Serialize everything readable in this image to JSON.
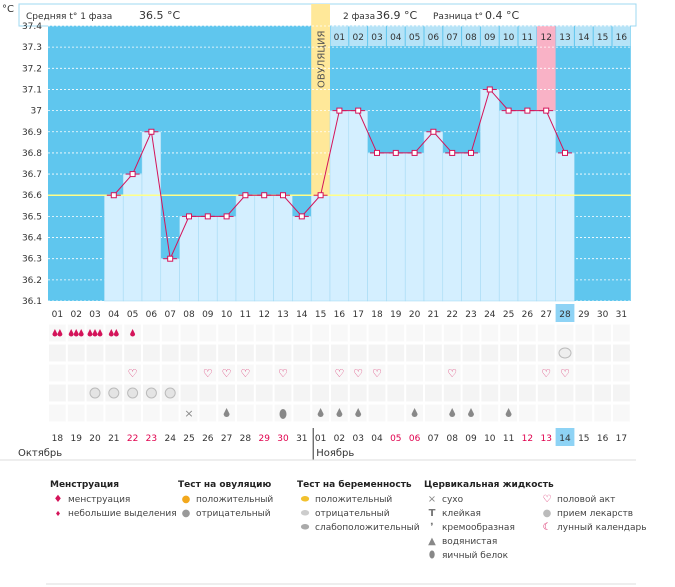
{
  "axis_unit": "°C",
  "header": {
    "phase1_label": "Средняя t° 1 фаза",
    "phase1_value": "36.5 °C",
    "phase2_label": "2 фаза",
    "phase2_value": "36.9 °C",
    "diff_label": "Разница t°",
    "diff_value": "0.4 °C"
  },
  "ovulation_label": "ОВУЛЯЦИЯ",
  "month_left": "Октябрь",
  "month_right": "Ноябрь",
  "colors": {
    "plot_bg": "#5fc6ee",
    "bar_fill": "#d4efff",
    "line": "#d4145a",
    "ovulation": "#ffe899",
    "pink_col": "#f9b2c6",
    "coverline": "#ffff88",
    "grid": "#ffffff",
    "current_day": "#8ed3f5",
    "red_date": "#e0004d"
  },
  "chart_data": {
    "type": "line",
    "ylabel": "°C",
    "ylim": [
      36.1,
      37.4
    ],
    "yticks": [
      "36.1",
      "36.2",
      "36.3",
      "36.4",
      "36.5",
      "36.6",
      "36.7",
      "36.8",
      "36.9",
      "37",
      "37.1",
      "37.2",
      "37.3",
      "37.4"
    ],
    "coverline": 36.6,
    "top_numbers": [
      "",
      "",
      "",
      "",
      "",
      "",
      "",
      "",
      "",
      "",
      "",
      "",
      "",
      "",
      "",
      "01",
      "02",
      "03",
      "04",
      "05",
      "06",
      "07",
      "08",
      "09",
      "10",
      "11",
      "12",
      "13",
      "14",
      "15",
      "16"
    ],
    "cycle_days": [
      "01",
      "02",
      "03",
      "04",
      "05",
      "06",
      "07",
      "08",
      "09",
      "10",
      "11",
      "12",
      "13",
      "14",
      "15",
      "16",
      "17",
      "18",
      "19",
      "20",
      "21",
      "22",
      "23",
      "24",
      "25",
      "26",
      "27",
      "28",
      "29",
      "30",
      "31"
    ],
    "dates": [
      "18",
      "19",
      "20",
      "21",
      "22",
      "23",
      "24",
      "25",
      "26",
      "27",
      "28",
      "29",
      "30",
      "31",
      "01",
      "02",
      "03",
      "04",
      "05",
      "06",
      "07",
      "08",
      "09",
      "10",
      "11",
      "12",
      "13",
      "14",
      "15",
      "16",
      "17"
    ],
    "red_dates": [
      4,
      5,
      11,
      12,
      18,
      19,
      25,
      26
    ],
    "current_index": 27,
    "ovulation_index": 14,
    "pink_index": 26,
    "series": [
      {
        "values": [
          null,
          null,
          null,
          36.6,
          36.7,
          36.9,
          36.3,
          36.5,
          36.5,
          36.5,
          36.6,
          36.6,
          36.6,
          36.5,
          36.6,
          37.0,
          37.0,
          36.8,
          36.8,
          36.8,
          36.9,
          36.8,
          36.8,
          37.1,
          37.0,
          37.0,
          37.0,
          36.8,
          null,
          null,
          null
        ]
      }
    ]
  },
  "markers": {
    "menstruation": [
      2,
      3,
      3,
      2,
      1,
      null,
      null,
      null,
      null,
      null,
      null,
      null,
      null,
      null,
      null,
      null,
      null,
      null,
      null,
      null,
      null,
      null,
      null,
      null,
      null,
      null,
      null,
      null,
      null,
      null,
      null
    ],
    "pregnancy_negative": [
      false,
      false,
      false,
      false,
      false,
      false,
      false,
      false,
      false,
      false,
      false,
      false,
      false,
      false,
      false,
      false,
      false,
      false,
      false,
      false,
      false,
      false,
      false,
      false,
      false,
      false,
      false,
      true,
      false,
      false,
      false
    ],
    "intercourse": [
      false,
      false,
      false,
      false,
      true,
      false,
      false,
      false,
      true,
      true,
      true,
      false,
      true,
      false,
      false,
      true,
      true,
      true,
      false,
      false,
      false,
      true,
      false,
      false,
      false,
      false,
      true,
      true,
      false,
      false,
      false
    ],
    "medication": [
      false,
      false,
      true,
      true,
      true,
      true,
      true,
      false,
      false,
      false,
      false,
      false,
      false,
      false,
      false,
      false,
      false,
      false,
      false,
      false,
      false,
      false,
      false,
      false,
      false,
      false,
      false,
      false,
      false,
      false,
      false
    ],
    "fluid": [
      "",
      "",
      "",
      "",
      "",
      "",
      "",
      "x",
      "",
      "w",
      "",
      "",
      "e",
      "",
      "w",
      "w",
      "w",
      "",
      "",
      "w",
      "",
      "w",
      "w",
      "",
      "w",
      "",
      "",
      "",
      "",
      "",
      ""
    ]
  },
  "legend": {
    "menses": {
      "title": "Менструация",
      "items": [
        "менструация",
        "небольшие выделения"
      ]
    },
    "ovulation_test": {
      "title": "Тест на овуляцию",
      "items": [
        "положительный",
        "отрицательный"
      ]
    },
    "pregnancy_test": {
      "title": "Тест на беременность",
      "items": [
        "положительный",
        "отрицательный",
        "слабоположительный"
      ]
    },
    "cervical": {
      "title": "Цервикальная жидкость",
      "items": [
        "сухо",
        "клейкая",
        "кремообразная",
        "водянистая",
        "яичный белок"
      ]
    },
    "other": {
      "items": [
        "половой акт",
        "прием лекарств",
        "лунный календарь"
      ]
    }
  }
}
